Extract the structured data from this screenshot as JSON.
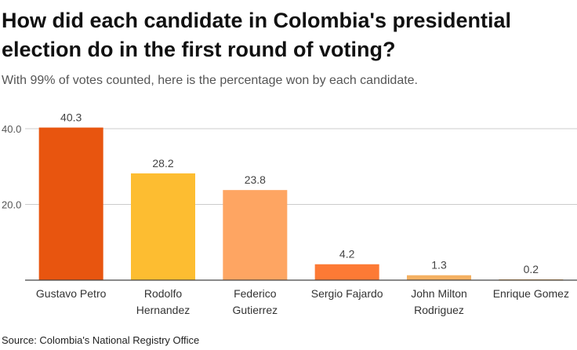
{
  "chart_data": {
    "type": "bar",
    "title": "How did each candidate in Colombia's presidential election do in the first round of voting?",
    "subtitle": "With 99% of votes counted, here is the percentage won by each candidate.",
    "source": "Source: Colombia's National Registry Office",
    "categories": [
      [
        "Gustavo Petro"
      ],
      [
        "Rodolfo",
        "Hernandez"
      ],
      [
        "Federico",
        "Gutierrez"
      ],
      [
        "Sergio Fajardo"
      ],
      [
        "John Milton",
        "Rodriguez"
      ],
      [
        "Enrique Gomez"
      ]
    ],
    "values": [
      40.3,
      28.2,
      23.8,
      4.2,
      1.3,
      0.2
    ],
    "value_labels": [
      "40.3",
      "28.2",
      "23.8",
      "4.2",
      "1.3",
      "0.2"
    ],
    "colors": [
      "#e8550f",
      "#fdbd31",
      "#fea562",
      "#fd7a35",
      "#f5b162",
      "#e2a04f"
    ],
    "yticks": [
      20,
      40
    ],
    "ytick_labels": [
      "20.0",
      "40.0"
    ],
    "ylim": [
      0,
      40
    ],
    "grid": true
  }
}
